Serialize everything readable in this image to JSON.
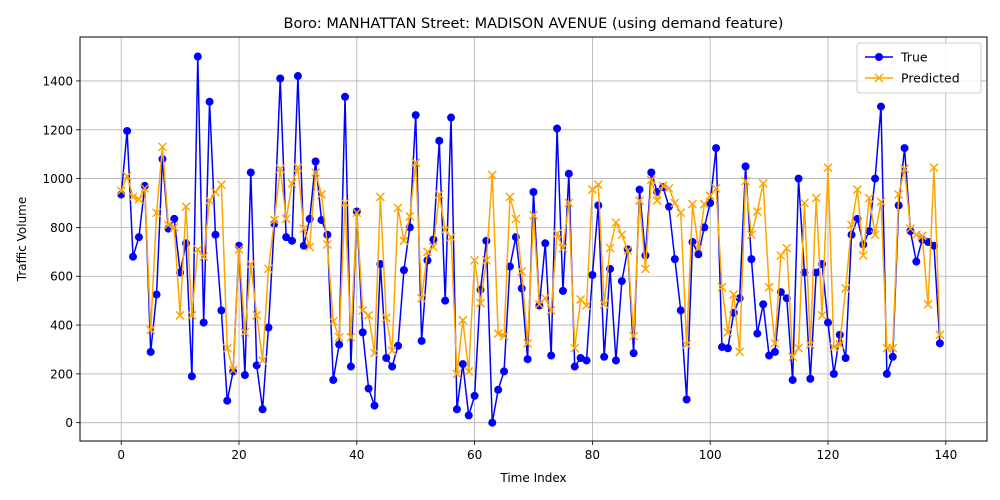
{
  "chart_data": {
    "type": "line",
    "title": "Boro: MANHATTAN Street: MADISON AVENUE (using demand feature)",
    "xlabel": "Time Index",
    "ylabel": "Traffic Volume",
    "xlim": [
      -7,
      147
    ],
    "ylim": [
      -75,
      1580
    ],
    "xticks": [
      0,
      20,
      40,
      60,
      80,
      100,
      120,
      140
    ],
    "yticks": [
      0,
      200,
      400,
      600,
      800,
      1000,
      1200,
      1400
    ],
    "grid": true,
    "legend_position": "top-right",
    "series": [
      {
        "name": "True",
        "color": "#0000ff",
        "marker": "circle",
        "values": [
          935,
          1195,
          680,
          760,
          970,
          290,
          525,
          1080,
          795,
          835,
          615,
          735,
          190,
          1500,
          410,
          1315,
          770,
          460,
          90,
          210,
          725,
          195,
          1025,
          235,
          55,
          390,
          815,
          1410,
          760,
          745,
          1420,
          725,
          835,
          1070,
          830,
          770,
          175,
          320,
          1335,
          230,
          865,
          370,
          140,
          70,
          650,
          265,
          230,
          315,
          625,
          800,
          1260,
          335,
          665,
          750,
          1155,
          500,
          1250,
          55,
          240,
          30,
          110,
          545,
          745,
          0,
          135,
          210,
          640,
          760,
          550,
          260,
          945,
          480,
          735,
          275,
          1205,
          540,
          1020,
          230,
          265,
          255,
          605,
          890,
          270,
          630,
          255,
          580,
          710,
          285,
          955,
          685,
          1025,
          945,
          965,
          885,
          670,
          460,
          95,
          740,
          690,
          800,
          900,
          1125,
          310,
          305,
          450,
          510,
          1050,
          670,
          365,
          485,
          275,
          290,
          535,
          510,
          175,
          1000,
          615,
          180,
          615,
          650,
          410,
          200,
          360,
          265,
          770,
          835,
          730,
          785,
          1000,
          1295,
          200,
          270,
          890,
          1125,
          785,
          660,
          750,
          740,
          725,
          325
        ]
      },
      {
        "name": "Predicted",
        "color": "#ffa500",
        "marker": "x",
        "values": [
          950,
          1010,
          925,
          915,
          960,
          380,
          860,
          1130,
          810,
          800,
          440,
          885,
          440,
          710,
          680,
          910,
          945,
          975,
          305,
          215,
          710,
          370,
          650,
          440,
          255,
          630,
          830,
          1040,
          835,
          980,
          1045,
          795,
          720,
          1025,
          935,
          730,
          415,
          350,
          900,
          350,
          860,
          460,
          440,
          285,
          925,
          430,
          295,
          880,
          745,
          845,
          1065,
          510,
          700,
          720,
          935,
          790,
          760,
          200,
          420,
          210,
          665,
          490,
          665,
          1015,
          365,
          355,
          925,
          835,
          620,
          325,
          850,
          485,
          510,
          460,
          775,
          715,
          900,
          305,
          505,
          480,
          955,
          975,
          485,
          715,
          820,
          770,
          705,
          355,
          910,
          630,
          995,
          910,
          970,
          960,
          900,
          860,
          320,
          895,
          715,
          895,
          930,
          960,
          555,
          370,
          525,
          290,
          990,
          770,
          865,
          980,
          555,
          325,
          685,
          715,
          270,
          305,
          900,
          320,
          920,
          440,
          1045,
          310,
          320,
          550,
          810,
          955,
          685,
          920,
          770,
          905,
          305,
          305,
          935,
          1040,
          795,
          770,
          765,
          485,
          1045,
          360
        ]
      }
    ]
  }
}
